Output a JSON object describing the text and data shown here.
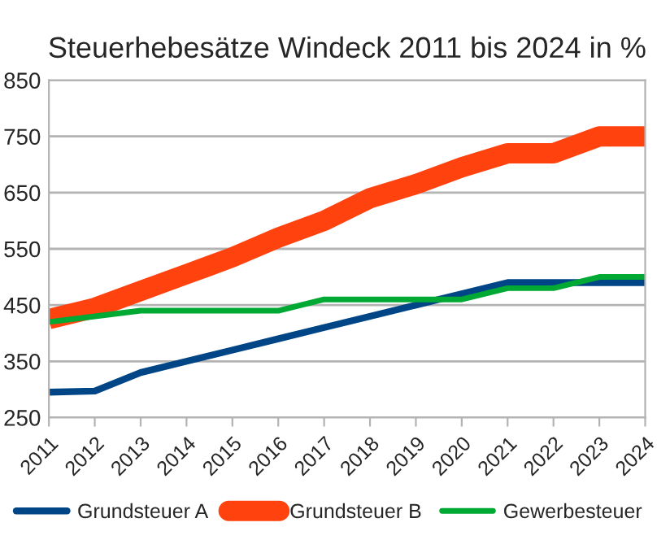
{
  "chart_data": {
    "type": "line",
    "title": "Steuerhebesätze Windeck 2011 bis 2024 in %",
    "categories": [
      "2011",
      "2012",
      "2013",
      "2014",
      "2015",
      "2016",
      "2017",
      "2018",
      "2019",
      "2020",
      "2021",
      "2022",
      "2023",
      "2024"
    ],
    "series": [
      {
        "name": "Grundsteuer A",
        "color": "#004586",
        "values": [
          295,
          297,
          330,
          350,
          370,
          390,
          410,
          430,
          450,
          470,
          490,
          490,
          490,
          490
        ]
      },
      {
        "name": "Grundsteuer B",
        "color": "#ff420e",
        "values": [
          425,
          445,
          475,
          505,
          535,
          570,
          600,
          640,
          665,
          695,
          720,
          720,
          750,
          750
        ]
      },
      {
        "name": "Gewerbesteuer",
        "color": "#00a933",
        "values": [
          420,
          430,
          440,
          440,
          440,
          440,
          460,
          460,
          460,
          460,
          480,
          480,
          500,
          500
        ]
      }
    ],
    "ylim": [
      250,
      850
    ],
    "yticks": [
      250,
      350,
      450,
      550,
      650,
      750,
      850
    ],
    "grid": "y",
    "legend": "bottom",
    "marker": "none",
    "line_style": "solid"
  }
}
